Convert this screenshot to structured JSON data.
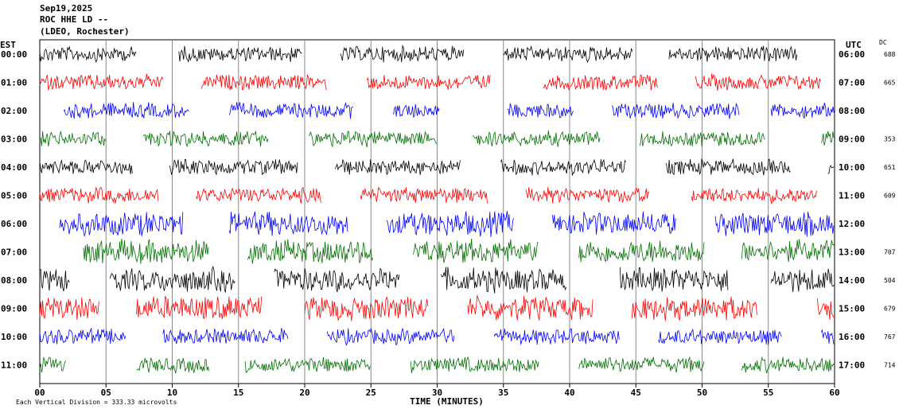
{
  "header": {
    "date": "Sep19,2025",
    "station": "ROC HHE LD --",
    "network": "(LDEO, Rochester)"
  },
  "chart_data": {
    "type": "line",
    "title": "",
    "xlabel": "TIME (MINUTES)",
    "ylabel": "",
    "xlim": [
      0,
      60
    ],
    "x_ticks": [
      "00",
      "05",
      "10",
      "15",
      "20",
      "25",
      "30",
      "35",
      "40",
      "45",
      "50",
      "55",
      "60"
    ],
    "left_axis_label": "EST",
    "right_axis_label": "UTC",
    "dc_label": "DC",
    "footnote": "Each Vertical Division =  333.33 microvolts",
    "grid": true,
    "colors": [
      "#000000",
      "#ff0000",
      "#0000ff",
      "#007000"
    ],
    "rows": [
      {
        "est": "00:00",
        "utc": "06:00",
        "dc": "688",
        "color": "#000000",
        "segments": [
          [
            0,
            7.3
          ],
          [
            10.5,
            19.8
          ],
          [
            22.7,
            32
          ],
          [
            35,
            44.8
          ],
          [
            47.5,
            57.2
          ]
        ]
      },
      {
        "est": "01:00",
        "utc": "07:00",
        "dc": "665",
        "color": "#ff0000",
        "segments": [
          [
            0,
            9.3
          ],
          [
            12.2,
            21.7
          ],
          [
            24.7,
            34
          ],
          [
            38,
            46.7
          ],
          [
            49.5,
            59
          ]
        ]
      },
      {
        "est": "02:00",
        "utc": "08:00",
        "dc": "",
        "color": "#0000ff",
        "segments": [
          [
            1.8,
            11.3
          ],
          [
            14.3,
            23.7
          ],
          [
            26.7,
            30.2
          ],
          [
            35.3,
            40.3
          ],
          [
            43.2,
            52.8
          ],
          [
            55.2,
            60
          ]
        ]
      },
      {
        "est": "03:00",
        "utc": "09:00",
        "dc": "353",
        "color": "#007000",
        "segments": [
          [
            0,
            5
          ],
          [
            7.8,
            17.3
          ],
          [
            20.3,
            30
          ],
          [
            32.7,
            42.3
          ],
          [
            45.3,
            54.8
          ],
          [
            59,
            60
          ]
        ]
      },
      {
        "est": "04:00",
        "utc": "10:00",
        "dc": "651",
        "color": "#000000",
        "segments": [
          [
            0,
            7
          ],
          [
            9.8,
            19.5
          ],
          [
            22.3,
            31.8
          ],
          [
            34.8,
            44.3
          ],
          [
            47.3,
            56.7
          ],
          [
            59.5,
            60
          ]
        ]
      },
      {
        "est": "05:00",
        "utc": "11:00",
        "dc": "609",
        "color": "#ff0000",
        "segments": [
          [
            0,
            9
          ],
          [
            11.8,
            21.3
          ],
          [
            24.2,
            33.8
          ],
          [
            36.7,
            46
          ],
          [
            49.2,
            58.7
          ]
        ]
      },
      {
        "est": "06:00",
        "utc": "12:00",
        "dc": "",
        "color": "#0000ff",
        "segments": [
          [
            1.5,
            10.8
          ],
          [
            14.3,
            23.3
          ],
          [
            26.2,
            35.8
          ],
          [
            38.7,
            48
          ],
          [
            51,
            60
          ]
        ]
      },
      {
        "est": "07:00",
        "utc": "13:00",
        "dc": "707",
        "color": "#007000",
        "segments": [
          [
            3.3,
            12.8
          ],
          [
            15.7,
            25.2
          ],
          [
            28.2,
            37.7
          ],
          [
            40.7,
            50.2
          ],
          [
            53,
            60
          ]
        ]
      },
      {
        "est": "08:00",
        "utc": "14:00",
        "dc": "504",
        "color": "#000000",
        "segments": [
          [
            0,
            2.3
          ],
          [
            5.3,
            14.8
          ],
          [
            17.7,
            27.2
          ],
          [
            30.3,
            39.8
          ],
          [
            43.8,
            52
          ],
          [
            55.2,
            60
          ]
        ]
      },
      {
        "est": "09:00",
        "utc": "15:00",
        "dc": "679",
        "color": "#ff0000",
        "segments": [
          [
            0,
            4.5
          ],
          [
            7.3,
            16.8
          ],
          [
            20,
            29.3
          ],
          [
            32.3,
            41.8
          ],
          [
            44.7,
            54.2
          ],
          [
            58.7,
            60
          ]
        ]
      },
      {
        "est": "10:00",
        "utc": "16:00",
        "dc": "767",
        "color": "#0000ff",
        "segments": [
          [
            0,
            6.5
          ],
          [
            9.3,
            18.8
          ],
          [
            21.7,
            31.3
          ],
          [
            34.3,
            43.8
          ],
          [
            46.7,
            56
          ],
          [
            59,
            60
          ]
        ]
      },
      {
        "est": "11:00",
        "utc": "17:00",
        "dc": "714",
        "color": "#007000",
        "segments": [
          [
            0,
            2
          ],
          [
            7.3,
            12.8
          ],
          [
            15.5,
            25
          ],
          [
            28,
            37.7
          ],
          [
            40.7,
            50.2
          ],
          [
            53,
            60
          ]
        ]
      }
    ]
  }
}
